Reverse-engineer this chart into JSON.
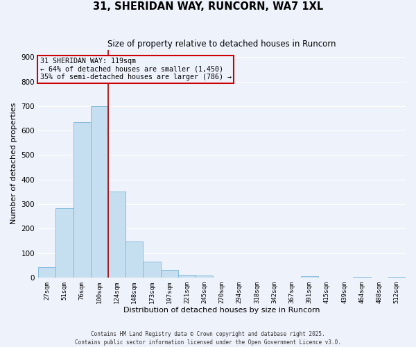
{
  "title": "31, SHERIDAN WAY, RUNCORN, WA7 1XL",
  "subtitle": "Size of property relative to detached houses in Runcorn",
  "xlabel": "Distribution of detached houses by size in Runcorn",
  "ylabel": "Number of detached properties",
  "bar_labels": [
    "27sqm",
    "51sqm",
    "76sqm",
    "100sqm",
    "124sqm",
    "148sqm",
    "173sqm",
    "197sqm",
    "221sqm",
    "245sqm",
    "270sqm",
    "294sqm",
    "318sqm",
    "342sqm",
    "367sqm",
    "391sqm",
    "415sqm",
    "439sqm",
    "464sqm",
    "488sqm",
    "512sqm"
  ],
  "bar_values": [
    42,
    283,
    635,
    700,
    350,
    147,
    65,
    30,
    12,
    8,
    0,
    0,
    0,
    0,
    0,
    5,
    0,
    0,
    2,
    0,
    2
  ],
  "bar_color": "#c5dff0",
  "bar_edge_color": "#7ab5d8",
  "bg_color": "#eef2fb",
  "grid_color": "#ffffff",
  "vline_color": "#aa0000",
  "annotation_text": "31 SHERIDAN WAY: 119sqm\n← 64% of detached houses are smaller (1,450)\n35% of semi-detached houses are larger (786) →",
  "annotation_box_color": "#cc0000",
  "ylim": [
    0,
    930
  ],
  "yticks": [
    0,
    100,
    200,
    300,
    400,
    500,
    600,
    700,
    800,
    900
  ],
  "footer1": "Contains HM Land Registry data © Crown copyright and database right 2025.",
  "footer2": "Contains public sector information licensed under the Open Government Licence v3.0."
}
